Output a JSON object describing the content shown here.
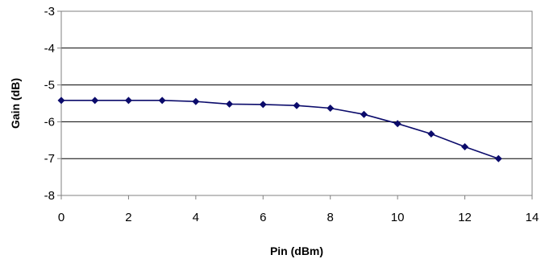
{
  "chart_data": {
    "type": "line",
    "xlabel": "Pin (dBm)",
    "ylabel": "Gain (dB)",
    "xlim": [
      0,
      14
    ],
    "ylim": [
      -8,
      -3
    ],
    "x_ticks": [
      0,
      2,
      4,
      6,
      8,
      10,
      12,
      14
    ],
    "y_ticks": [
      -8,
      -7,
      -6,
      -5,
      -4,
      -3
    ],
    "grid": "horizontal",
    "legend": "none",
    "series": [
      {
        "color": "#0b0b6b",
        "marker": "diamond",
        "x": [
          0,
          1,
          2,
          3,
          4,
          5,
          6,
          7,
          8,
          9,
          10,
          11,
          12,
          13
        ],
        "y": [
          -5.42,
          -5.42,
          -5.42,
          -5.42,
          -5.45,
          -5.52,
          -5.53,
          -5.56,
          -5.63,
          -5.8,
          -6.05,
          -6.33,
          -6.68,
          -7.0
        ]
      }
    ]
  }
}
